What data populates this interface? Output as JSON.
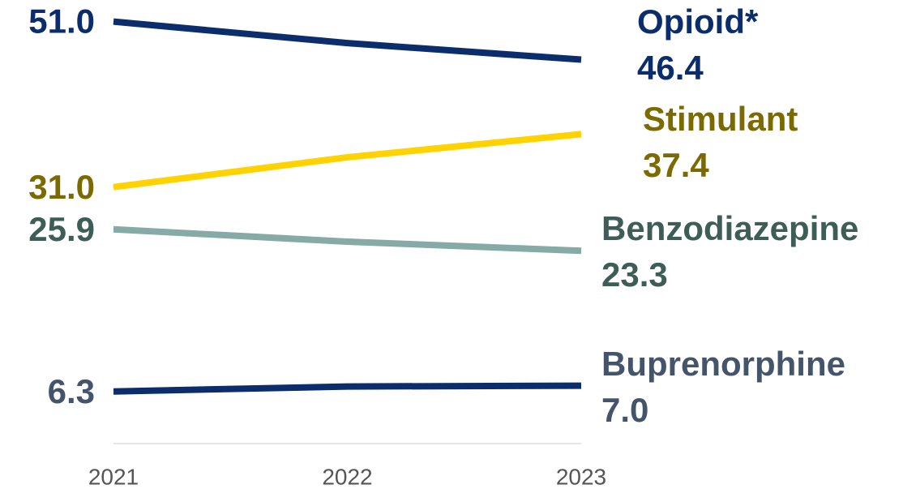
{
  "chart_data": {
    "type": "line",
    "categories": [
      "2021",
      "2022",
      "2023"
    ],
    "ylim": [
      0,
      54
    ],
    "series": [
      {
        "name": "Opioid*",
        "color": "#0b2d6b",
        "label_color": "#0b2d6b",
        "values": [
          51.0,
          48.4,
          46.4
        ],
        "value_labels": [
          "51.0",
          null,
          "46.4"
        ]
      },
      {
        "name": "Stimulant",
        "color": "#ffd200",
        "label_color": "#7a6a00",
        "values": [
          31.0,
          34.6,
          37.4
        ],
        "value_labels": [
          "31.0",
          null,
          "37.4"
        ]
      },
      {
        "name": "Benzodiazepine",
        "color": "#86aaa5",
        "label_color": "#3f5d57",
        "values": [
          25.9,
          24.4,
          23.3
        ],
        "value_labels": [
          "25.9",
          null,
          "23.3"
        ]
      },
      {
        "name": "Buprenorphine",
        "color": "#0b2d6b",
        "label_color": "#44546a",
        "values": [
          6.3,
          6.9,
          7.0
        ],
        "value_labels": [
          "6.3",
          null,
          "7.0"
        ]
      }
    ]
  }
}
